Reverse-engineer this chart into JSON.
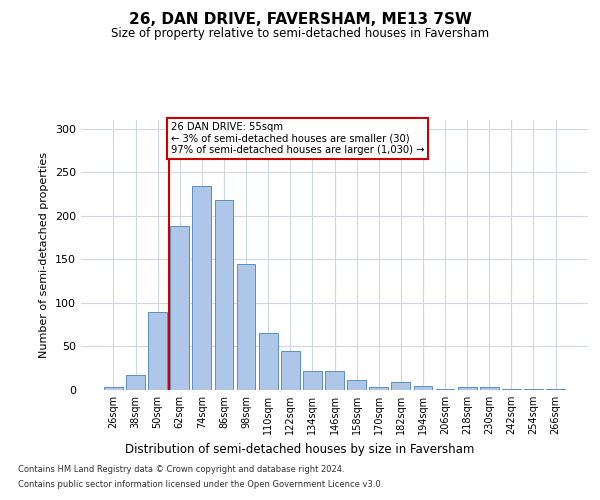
{
  "title_line1": "26, DAN DRIVE, FAVERSHAM, ME13 7SW",
  "title_line2": "Size of property relative to semi-detached houses in Faversham",
  "xlabel": "Distribution of semi-detached houses by size in Faversham",
  "ylabel": "Number of semi-detached properties",
  "categories": [
    "26sqm",
    "38sqm",
    "50sqm",
    "62sqm",
    "74sqm",
    "86sqm",
    "98sqm",
    "110sqm",
    "122sqm",
    "134sqm",
    "146sqm",
    "158sqm",
    "170sqm",
    "182sqm",
    "194sqm",
    "206sqm",
    "218sqm",
    "230sqm",
    "242sqm",
    "254sqm",
    "266sqm"
  ],
  "values": [
    3,
    17,
    90,
    188,
    234,
    218,
    145,
    65,
    45,
    22,
    22,
    12,
    3,
    9,
    5,
    1,
    3,
    3,
    1,
    1,
    1
  ],
  "bar_color": "#aec6e8",
  "bar_edge_color": "#5a8fc0",
  "highlight_color": "#cc0000",
  "annotation_text": "26 DAN DRIVE: 55sqm\n← 3% of semi-detached houses are smaller (30)\n97% of semi-detached houses are larger (1,030) →",
  "annotation_box_color": "#ffffff",
  "annotation_box_edge": "#cc0000",
  "ylim": [
    0,
    310
  ],
  "yticks": [
    0,
    50,
    100,
    150,
    200,
    250,
    300
  ],
  "footer_line1": "Contains HM Land Registry data © Crown copyright and database right 2024.",
  "footer_line2": "Contains public sector information licensed under the Open Government Licence v3.0.",
  "background_color": "#ffffff",
  "grid_color": "#d0d8e8"
}
